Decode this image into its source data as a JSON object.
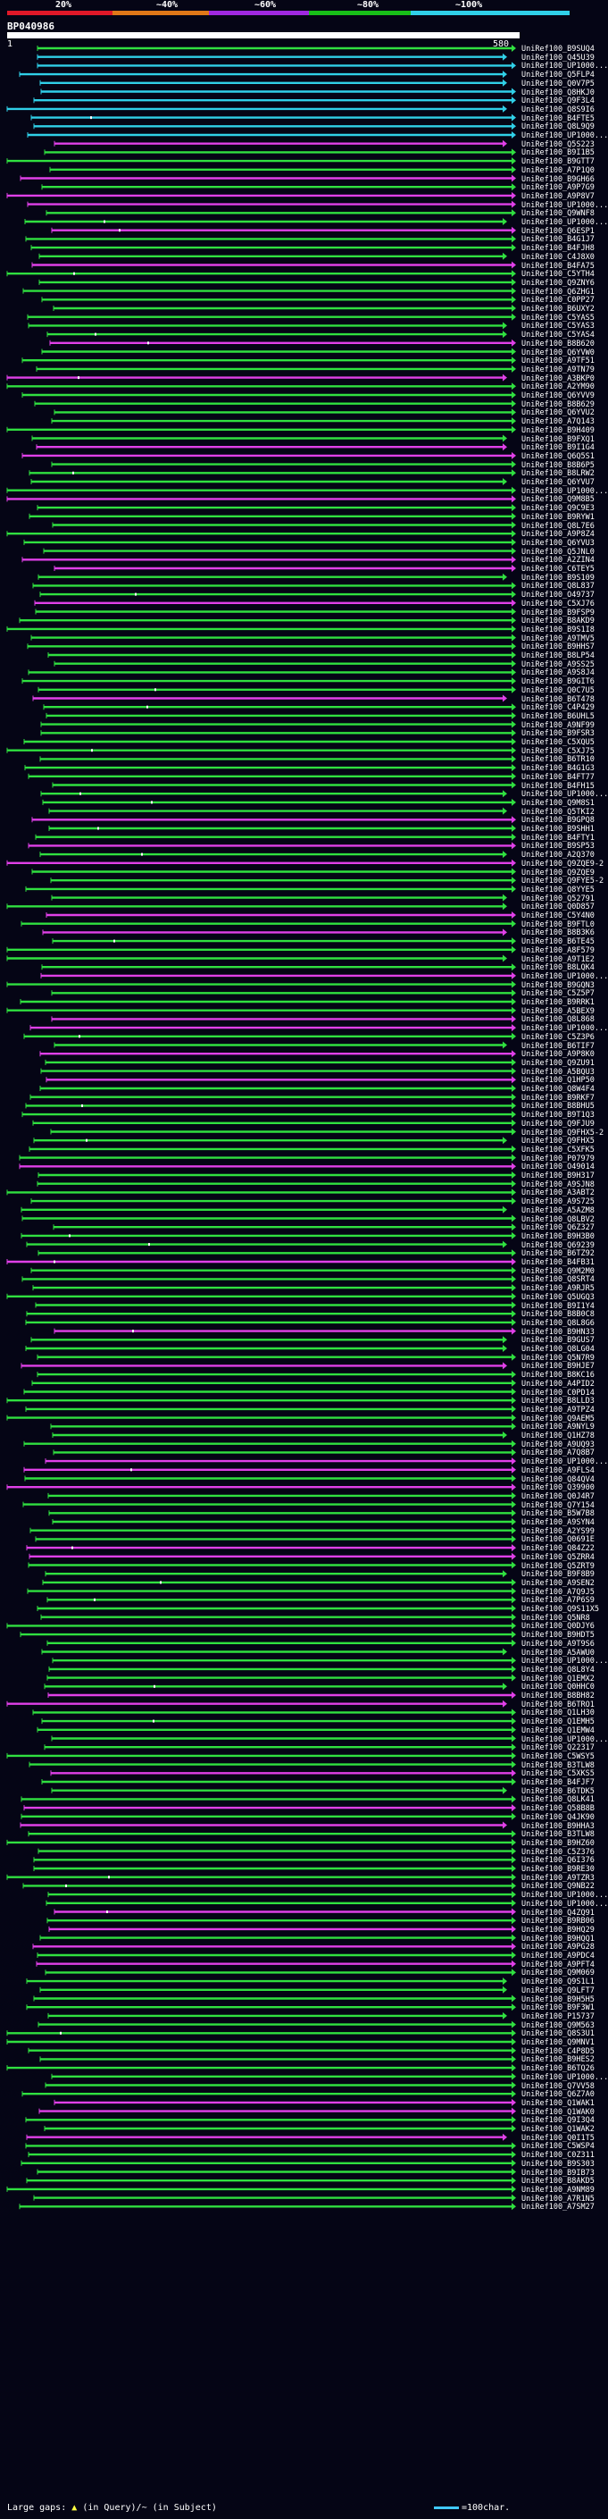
{
  "legend": {
    "scale_labels": [
      "20%",
      "~40%",
      "~60%",
      "~80%",
      "~100%"
    ],
    "segment_colors": [
      "#e01828",
      "#e07818",
      "#a028e0",
      "#18c018",
      "#30d0e8"
    ]
  },
  "query": {
    "name": "BP040986",
    "start_label": "1",
    "end_label": "580"
  },
  "colors": {
    "green": "#30e040",
    "pink": "#e040e8",
    "cyan": "#30d0e8",
    "gap": "#2a2a2a",
    "background": "#050515"
  },
  "hits": [
    "UniRef100_B9SUQ4",
    "UniRef100_Q45U39",
    "UniRef100_UP1000...",
    "UniRef100_Q5FLP4",
    "UniRef100_Q0V7P5",
    "UniRef100_Q8HKJ0",
    "UniRef100_Q9F3L4",
    "UniRef100_Q8S9I6",
    "UniRef100_B4FTE5",
    "UniRef100_Q8L9Q9",
    "UniRef100_UP1000...",
    "UniRef100_Q5S223",
    "UniRef100_B9I1B5",
    "UniRef100_B9GTT7",
    "UniRef100_A7P1Q0",
    "UniRef100_B9GH66",
    "UniRef100_A9P7G9",
    "UniRef100_A9P8V7",
    "UniRef100_UP1000...",
    "UniRef100_Q9WNF8",
    "UniRef100_UP1000...",
    "UniRef100_Q6ESP1",
    "UniRef100_B4G1J7",
    "UniRef100_B4FJH8",
    "UniRef100_C4J8X0",
    "UniRef100_B4FA75",
    "UniRef100_C5YTH4",
    "UniRef100_Q9ZNY6",
    "UniRef100_Q6ZHG1",
    "UniRef100_C0PP27",
    "UniRef100_B6UXY2",
    "UniRef100_C5YAS5",
    "UniRef100_C5YAS3",
    "UniRef100_C5YAS4",
    "UniRef100_B8B620",
    "UniRef100_Q6YVW0",
    "UniRef100_A9TF51",
    "UniRef100_A9TN79",
    "UniRef100_A3BKP0",
    "UniRef100_A2YM90",
    "UniRef100_Q6YVV9",
    "UniRef100_B8B629",
    "UniRef100_Q6YVU2",
    "UniRef100_A7Q143",
    "UniRef100_B9H409",
    "UniRef100_B9FXQ1",
    "UniRef100_B9I1G4",
    "UniRef100_Q6Q5S1",
    "UniRef100_B8B6P5",
    "UniRef100_B8LRW2",
    "UniRef100_Q6YVU7",
    "UniRef100_UP1000...",
    "UniRef100_Q9M8B5",
    "UniRef100_Q9C9E3",
    "UniRef100_B9RYW1",
    "UniRef100_Q8L7E6",
    "UniRef100_A9P8Z4",
    "UniRef100_Q6YVU3",
    "UniRef100_Q5JNL0",
    "UniRef100_A2ZIN4",
    "UniRef100_C6TEY5",
    "UniRef100_B9S109",
    "UniRef100_Q8L837",
    "UniRef100_O49737",
    "UniRef100_C5XJ76",
    "UniRef100_B9FSP9",
    "UniRef100_B8AKD9",
    "UniRef100_B9S1I8",
    "UniRef100_A9TMV5",
    "UniRef100_B9HHS7",
    "UniRef100_B8LP54",
    "UniRef100_A9SS25",
    "UniRef100_A9S8J4",
    "UniRef100_B9GIT6",
    "UniRef100_Q0C7U5",
    "UniRef100_B6T478",
    "UniRef100_C4P429",
    "UniRef100_B6UHL5",
    "UniRef100_A9NF99",
    "UniRef100_B9FSR3",
    "UniRef100_C5XQU5",
    "UniRef100_C5XJ75",
    "UniRef100_B6TR10",
    "UniRef100_B4G1G3",
    "UniRef100_B4FT77",
    "UniRef100_B4FH15",
    "UniRef100_UP1000...",
    "UniRef100_Q9M8S1",
    "UniRef100_Q5TKI2",
    "UniRef100_B9GPQ8",
    "UniRef100_B9SHH1",
    "UniRef100_B4FTY1",
    "UniRef100_B9SP53",
    "UniRef100_A2Q370",
    "UniRef100_Q9ZQE9-2",
    "UniRef100_Q9ZQE9",
    "UniRef100_Q9FYE5-2",
    "UniRef100_Q8YYE5",
    "UniRef100_Q52791",
    "UniRef100_Q0D857",
    "UniRef100_C5Y4N0",
    "UniRef100_B9FTL0",
    "UniRef100_B8B3K6",
    "UniRef100_B6TE45",
    "UniRef100_A8F579",
    "UniRef100_A9T1E2",
    "UniRef100_B8LQK4",
    "UniRef100_UP1000...",
    "UniRef100_B9GQN3",
    "UniRef100_C5Z5P7",
    "UniRef100_B9RRK1",
    "UniRef100_A5BEX9",
    "UniRef100_Q8L868",
    "UniRef100_UP1000...",
    "UniRef100_C5Z3P6",
    "UniRef100_B6TIF7",
    "UniRef100_A9P8K0",
    "UniRef100_Q9ZU91",
    "UniRef100_A5BQU3",
    "UniRef100_Q1HP50",
    "UniRef100_Q8W4F4",
    "UniRef100_B9RKF7",
    "UniRef100_B8BHU5",
    "UniRef100_B9T1Q3",
    "UniRef100_Q9FJU9",
    "UniRef100_Q9FHX5-2",
    "UniRef100_Q9FHX5",
    "UniRef100_C5XFK5",
    "UniRef100_P07979",
    "UniRef100_O49014",
    "UniRef100_B9H317",
    "UniRef100_A9SJN8",
    "UniRef100_A3ABT2",
    "UniRef100_A9S725",
    "UniRef100_A5AZM8",
    "UniRef100_Q8LBV2",
    "UniRef100_Q6Z327",
    "UniRef100_B9H3B0",
    "UniRef100_Q69239",
    "UniRef100_B6TZ92",
    "UniRef100_B4FB31",
    "UniRef100_Q9M2M0",
    "UniRef100_Q8SRT4",
    "UniRef100_A9RJR5",
    "UniRef100_Q5UGQ3",
    "UniRef100_B9I1Y4",
    "UniRef100_B8B0C8",
    "UniRef100_Q8L8G6",
    "UniRef100_B9HN33",
    "UniRef100_B9GUS7",
    "UniRef100_Q8LG04",
    "UniRef100_Q5N7R9",
    "UniRef100_B9HJE7",
    "UniRef100_B8KC16",
    "UniRef100_A4PID2",
    "UniRef100_C0PD14",
    "UniRef100_B8LLD3",
    "UniRef100_A9TPZ4",
    "UniRef100_Q9AEM5",
    "UniRef100_A9NYL9",
    "UniRef100_Q1HZ78",
    "UniRef100_A9UQ93",
    "UniRef100_A7Q8B7",
    "UniRef100_UP1000...",
    "UniRef100_A9FLS4",
    "UniRef100_Q84QV4",
    "UniRef100_Q39900",
    "UniRef100_Q0J4R7",
    "UniRef100_Q7Y154",
    "UniRef100_B5W7B8",
    "UniRef100_A9SYN4",
    "UniRef100_A2YS99",
    "UniRef100_Q0691E",
    "UniRef100_Q84Z22",
    "UniRef100_Q5ZRR4",
    "UniRef100_Q5ZRT9",
    "UniRef100_B9F8B9",
    "UniRef100_A9SEN2",
    "UniRef100_A7Q9J5",
    "UniRef100_A7P6S9",
    "UniRef100_Q9S11X5",
    "UniRef100_Q5NR8",
    "UniRef100_Q0DJY6",
    "UniRef100_B9HDT5",
    "UniRef100_A9T9S6",
    "UniRef100_A5AWU0",
    "UniRef100_UP1000...",
    "UniRef100_Q8L8Y4",
    "UniRef100_Q1EMX2",
    "UniRef100_Q0HHC0",
    "UniRef100_B8BH82",
    "UniRef100_B6TRO1",
    "UniRef100_Q1LH30",
    "UniRef100_Q1EMH5",
    "UniRef100_Q1EMW4",
    "UniRef100_UP1000...",
    "UniRef100_Q22317",
    "UniRef100_C5WSY5",
    "UniRef100_B3TLW8",
    "UniRef100_C5XKS5",
    "UniRef100_B4FJF7",
    "UniRef100_B6TDK5",
    "UniRef100_Q8LK41",
    "UniRef100_Q58B8B",
    "UniRef100_Q4JK90",
    "UniRef100_B9HHA3",
    "UniRef100_B3TLW8",
    "UniRef100_B9HZ60",
    "UniRef100_C5Z376",
    "UniRef100_Q6I376",
    "UniRef100_B9RE30",
    "UniRef100_A9TZR3",
    "UniRef100_Q9NB22",
    "UniRef100_UP1000...",
    "UniRef100_UP1000...",
    "UniRef100_Q4ZQ91",
    "UniRef100_B9RB06",
    "UniRef100_B9HQ29",
    "UniRef100_B9HQQ1",
    "UniRef100_A9PG28",
    "UniRef100_A9PDC4",
    "UniRef100_A9PFT4",
    "UniRef100_Q9M069",
    "UniRef100_Q9S1L1",
    "UniRef100_Q9LFT7",
    "UniRef100_B9H5H5",
    "UniRef100_B9F3W1",
    "UniRef100_P15737",
    "UniRef100_Q9M563",
    "UniRef100_Q8S3U1",
    "UniRef100_Q9MNV1",
    "UniRef100_C4P8D5",
    "UniRef100_B9HES2",
    "UniRef100_B6TQ26",
    "UniRef100_UP1000...",
    "UniRef100_Q7VV58",
    "UniRef100_Q6Z7A0",
    "UniRef100_Q1WAK1",
    "UniRef100_Q1WAK0",
    "UniRef100_Q9I3Q4",
    "UniRef100_Q1WAK2",
    "UniRef100_Q0I1T5",
    "UniRef100_C5WSP4",
    "UniRef100_C0Z311",
    "UniRef100_B9S303",
    "UniRef100_B9IB73",
    "UniRef100_B8AKD5",
    "UniRef100_A9NM89",
    "UniRef100_A7R1N5",
    "UniRef100_A7SM27"
  ],
  "footer": {
    "gap_legend_prefix": "Large gaps:",
    "gap_legend_query": "(in Query)",
    "gap_legend_separator": "/",
    "gap_legend_subject": "~ (in Subject)",
    "scale_key_label": "=100char."
  }
}
